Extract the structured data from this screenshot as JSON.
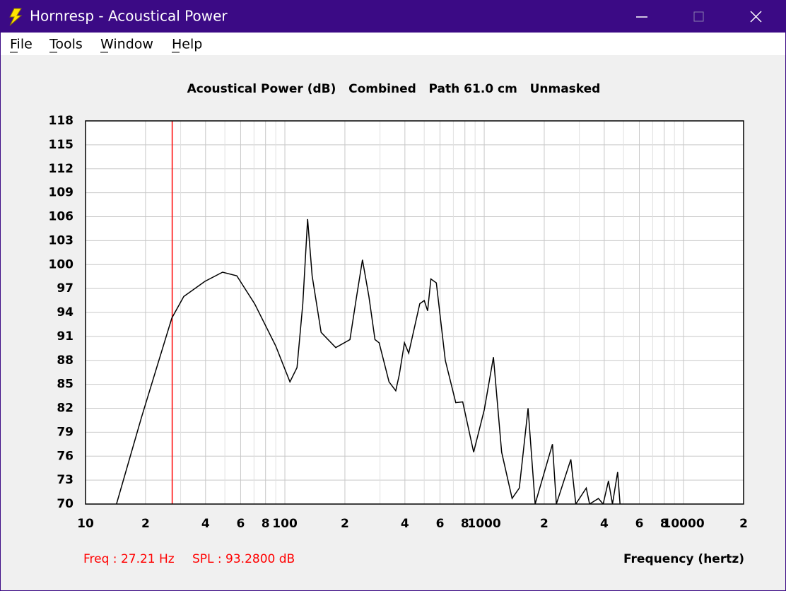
{
  "window": {
    "title": "Hornresp - Acoustical Power"
  },
  "menu": [
    "File",
    "Tools",
    "Window",
    "Help"
  ],
  "chart_data": {
    "type": "line",
    "title": "Acoustical Power (dB)   Combined   Path 61.0 cm   Unmasked",
    "x_label": "Frequency (hertz)",
    "annotations": [
      "Freq : 27.21 Hz",
      "SPL : 93.2800 dB"
    ],
    "cursor_x": 27.21,
    "x_log": true,
    "xlim": [
      10,
      20000
    ],
    "ylim": [
      70,
      118
    ],
    "xticks": [
      10,
      {
        "value": 20,
        "label": "2"
      },
      {
        "value": 40,
        "label": "4"
      },
      {
        "value": 60,
        "label": "6"
      },
      {
        "value": 80,
        "label": "8"
      },
      100,
      {
        "value": 200,
        "label": "2"
      },
      {
        "value": 400,
        "label": "4"
      },
      {
        "value": 600,
        "label": "6"
      },
      {
        "value": 800,
        "label": "8"
      },
      1000,
      {
        "value": 2000,
        "label": "2"
      },
      {
        "value": 4000,
        "label": "4"
      },
      {
        "value": 6000,
        "label": "6"
      },
      {
        "value": 8000,
        "label": "8"
      },
      10000,
      {
        "value": 20000,
        "label": "2"
      }
    ],
    "xgrid_minor": [
      30,
      50,
      70,
      90,
      300,
      500,
      700,
      900,
      3000,
      5000,
      7000,
      9000
    ],
    "yticks": [
      70,
      73,
      76,
      79,
      82,
      85,
      88,
      91,
      94,
      97,
      100,
      103,
      106,
      109,
      112,
      115,
      118
    ],
    "grid": true,
    "series": [
      {
        "name": "Acoustical Power",
        "color": "#000000",
        "x": [
          14.3,
          19.1,
          27.1,
          31.1,
          39.7,
          48.7,
          57.4,
          70.5,
          90,
          106,
          115,
          123,
          130,
          137,
          152,
          180,
          212,
          229,
          245,
          264,
          283,
          297,
          333,
          360,
          375,
          398,
          418,
          475,
          500,
          520,
          540,
          575,
          638,
          720,
          780,
          885,
          1000,
          1112,
          1223,
          1380,
          1500,
          1660,
          1800,
          2200,
          2300,
          2720,
          2880,
          3250,
          3375,
          3740,
          3950,
          4200,
          4400,
          4670,
          4800
        ],
        "values": [
          70,
          80.9,
          93.3,
          96.0,
          97.9,
          99.05,
          98.6,
          95.1,
          89.8,
          85.3,
          87.1,
          95.1,
          105.7,
          98.6,
          91.5,
          89.6,
          90.6,
          96,
          100.6,
          96,
          90.6,
          90.2,
          85.3,
          84.2,
          86.2,
          90.2,
          88.9,
          95.1,
          95.5,
          94.2,
          98.2,
          97.7,
          88,
          82.7,
          82.8,
          76.5,
          81.8,
          88.4,
          76.5,
          70.7,
          72,
          82,
          70,
          77.5,
          70,
          75.6,
          70,
          72,
          70,
          70.7,
          70,
          72.9,
          70,
          74,
          70
        ]
      }
    ]
  }
}
